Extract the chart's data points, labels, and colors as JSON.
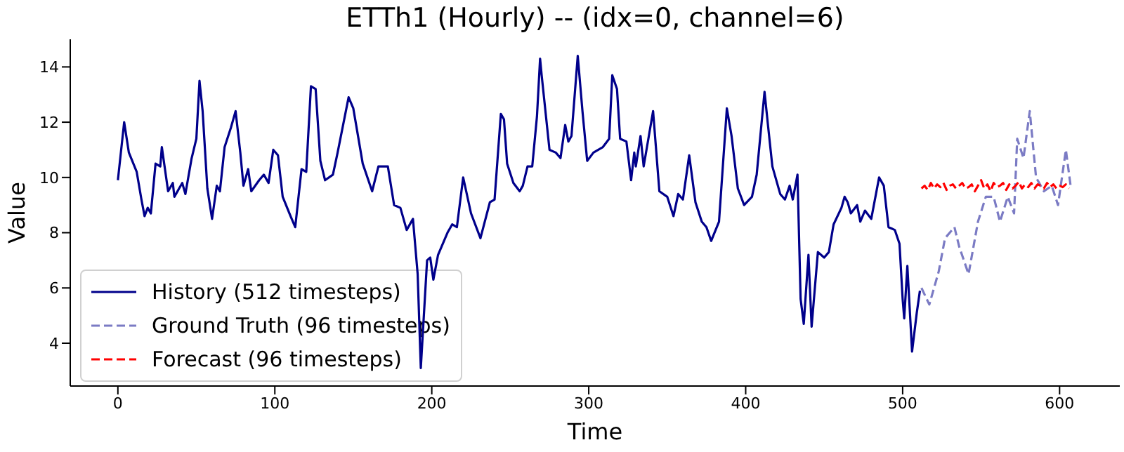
{
  "chart_data": {
    "type": "line",
    "title": "ETTh1 (Hourly) -- (idx=0, channel=6)",
    "xlabel": "Time",
    "ylabel": "Value",
    "xlim": [
      -30.35,
      638.35
    ],
    "ylim": [
      2.45,
      15.0
    ],
    "xticks": [
      0,
      100,
      200,
      300,
      400,
      500,
      600
    ],
    "yticks": [
      4,
      6,
      8,
      10,
      12,
      14
    ],
    "legend": "bottom left",
    "grid": false,
    "series": [
      {
        "name": "History (512 timesteps)",
        "color": "#00008b",
        "line_style": "solid",
        "x": [
          0,
          4,
          7,
          12,
          15,
          17,
          19,
          21,
          24,
          27,
          28,
          32,
          35,
          36,
          41,
          43,
          47,
          50,
          52,
          54,
          57,
          60,
          63,
          65,
          68,
          72,
          75,
          78,
          80,
          83,
          85,
          90,
          93,
          96,
          99,
          102,
          105,
          110,
          113,
          117,
          120,
          123,
          126,
          129,
          132,
          137,
          140,
          147,
          150,
          156,
          162,
          166,
          172,
          176,
          180,
          184,
          188,
          191,
          193,
          197,
          199,
          201,
          204,
          207,
          210,
          213,
          216,
          220,
          225,
          231,
          237,
          240,
          244,
          246,
          248,
          252,
          256,
          258,
          261,
          264,
          267,
          269,
          270,
          275,
          279,
          282,
          285,
          287,
          289,
          293,
          296,
          299,
          303,
          309,
          313,
          315,
          318,
          320,
          324,
          327,
          329,
          330,
          333,
          335,
          341,
          345,
          350,
          354,
          357,
          360,
          364,
          368,
          372,
          375,
          378,
          383,
          388,
          391,
          395,
          399,
          404,
          407,
          412,
          414,
          417,
          422,
          425,
          428,
          430,
          433,
          435,
          437,
          440,
          442,
          446,
          450,
          453,
          456,
          461,
          463,
          465,
          467,
          471,
          473,
          476,
          480,
          485,
          488,
          491,
          495,
          498,
          500,
          501,
          503,
          506,
          509,
          511
        ],
        "values": [
          9.9,
          12.0,
          10.9,
          10.2,
          9.2,
          8.6,
          8.9,
          8.7,
          10.5,
          10.4,
          11.1,
          9.5,
          9.8,
          9.3,
          9.8,
          9.4,
          10.7,
          11.4,
          13.5,
          12.4,
          9.6,
          8.5,
          9.7,
          9.5,
          11.1,
          11.8,
          12.4,
          10.9,
          9.7,
          10.3,
          9.5,
          9.9,
          10.1,
          9.8,
          11.0,
          10.8,
          9.3,
          8.6,
          8.2,
          10.3,
          10.2,
          13.3,
          13.2,
          10.6,
          9.9,
          10.1,
          10.9,
          12.9,
          12.5,
          10.5,
          9.5,
          10.4,
          10.4,
          9.0,
          8.9,
          8.1,
          8.5,
          6.5,
          3.1,
          7.0,
          7.1,
          6.3,
          7.2,
          7.6,
          8.0,
          8.3,
          8.2,
          10.0,
          8.7,
          7.8,
          9.1,
          9.2,
          12.3,
          12.1,
          10.5,
          9.8,
          9.5,
          9.7,
          10.4,
          10.4,
          12.2,
          14.3,
          13.7,
          11.0,
          10.9,
          10.7,
          11.9,
          11.3,
          11.5,
          14.4,
          12.4,
          10.6,
          10.9,
          11.1,
          11.4,
          13.7,
          13.2,
          11.4,
          11.3,
          9.9,
          10.9,
          10.4,
          11.5,
          10.4,
          12.4,
          9.5,
          9.3,
          8.6,
          9.4,
          9.2,
          10.8,
          9.1,
          8.4,
          8.2,
          7.7,
          8.4,
          12.5,
          11.5,
          9.6,
          9.0,
          9.3,
          10.1,
          13.1,
          12.0,
          10.4,
          9.4,
          9.2,
          9.7,
          9.2,
          10.1,
          5.6,
          4.7,
          7.2,
          4.6,
          7.3,
          7.1,
          7.3,
          8.3,
          8.9,
          9.3,
          9.1,
          8.7,
          9.0,
          8.4,
          8.8,
          8.5,
          10.0,
          9.7,
          8.2,
          8.1,
          7.6,
          5.6,
          4.9,
          6.8,
          3.7,
          5.1,
          5.9
        ]
      },
      {
        "name": "Ground Truth (96 timesteps)",
        "color": "#7b7bc4",
        "line_style": "dashed",
        "x": [
          512,
          517,
          523,
          527,
          533,
          536,
          542,
          548,
          553,
          558,
          562,
          567,
          571,
          573,
          577,
          581,
          585,
          590,
          595,
          599,
          604,
          607
        ],
        "values": [
          6.0,
          5.4,
          6.6,
          7.8,
          8.2,
          7.5,
          6.5,
          8.4,
          9.3,
          9.3,
          8.4,
          9.3,
          8.7,
          11.4,
          10.7,
          12.4,
          10.0,
          9.5,
          9.7,
          9.0,
          11.0,
          9.7
        ]
      },
      {
        "name": "Forecast (96 timesteps)",
        "color": "#ff0000",
        "line_style": "dashed",
        "x": [
          512,
          514,
          516,
          518,
          520,
          522,
          524,
          526,
          528,
          530,
          532,
          534,
          536,
          538,
          540,
          542,
          544,
          546,
          548,
          550,
          552,
          554,
          556,
          558,
          560,
          562,
          564,
          566,
          568,
          570,
          572,
          574,
          576,
          578,
          580,
          582,
          584,
          586,
          588,
          590,
          592,
          594,
          596,
          598,
          600,
          602,
          604,
          606
        ],
        "values": [
          9.6,
          9.7,
          9.55,
          9.8,
          9.6,
          9.75,
          9.65,
          9.8,
          9.55,
          9.7,
          9.75,
          9.6,
          9.7,
          9.8,
          9.6,
          9.65,
          9.75,
          9.5,
          9.7,
          9.9,
          9.6,
          9.75,
          9.5,
          9.8,
          9.65,
          9.7,
          9.8,
          9.55,
          9.75,
          9.6,
          9.7,
          9.85,
          9.6,
          9.75,
          9.65,
          9.8,
          9.6,
          9.75,
          9.7,
          9.6,
          9.8,
          9.65,
          9.75,
          9.6,
          9.7,
          9.65,
          9.75,
          9.6
        ]
      }
    ]
  }
}
